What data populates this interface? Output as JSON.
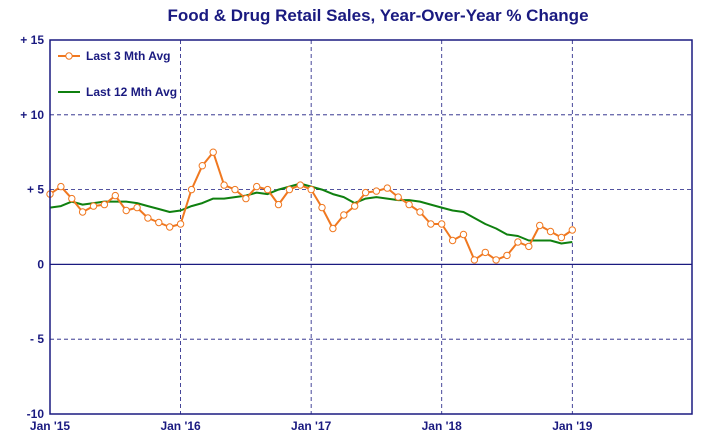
{
  "chart_data": {
    "type": "line",
    "title": "Food & Drug Retail Sales, Year-Over-Year % Change",
    "xlabel": "",
    "ylabel": "",
    "ylim": [
      -10,
      15
    ],
    "y_ticks": [
      15,
      10,
      5,
      0,
      -5,
      -10
    ],
    "y_tick_labels": [
      "+ 15",
      "+ 10",
      "+ 5",
      "0",
      "- 5",
      "-10"
    ],
    "x_tick_labels": [
      "Jan '15",
      "Jan '16",
      "Jan '17",
      "Jan '18",
      "Jan '19"
    ],
    "x_ticks": [
      "2015-01",
      "2016-01",
      "2017-01",
      "2018-01",
      "2019-01"
    ],
    "x_range": [
      "2015-01",
      "2019-12"
    ],
    "grid": true,
    "legend_position": "top-left",
    "x": [
      "2015-01",
      "2015-02",
      "2015-03",
      "2015-04",
      "2015-05",
      "2015-06",
      "2015-07",
      "2015-08",
      "2015-09",
      "2015-10",
      "2015-11",
      "2015-12",
      "2016-01",
      "2016-02",
      "2016-03",
      "2016-04",
      "2016-05",
      "2016-06",
      "2016-07",
      "2016-08",
      "2016-09",
      "2016-10",
      "2016-11",
      "2016-12",
      "2017-01",
      "2017-02",
      "2017-03",
      "2017-04",
      "2017-05",
      "2017-06",
      "2017-07",
      "2017-08",
      "2017-09",
      "2017-10",
      "2017-11",
      "2017-12",
      "2018-01",
      "2018-02",
      "2018-03",
      "2018-04",
      "2018-05",
      "2018-06",
      "2018-07",
      "2018-08",
      "2018-09",
      "2018-10",
      "2018-11",
      "2018-12",
      "2019-01"
    ],
    "series": [
      {
        "name": "Last 3 Mth Avg",
        "color": "#f07820",
        "marker": "circle",
        "values": [
          4.7,
          5.2,
          4.4,
          3.5,
          3.9,
          4.0,
          4.6,
          3.6,
          3.8,
          3.1,
          2.8,
          2.5,
          2.7,
          5.0,
          6.6,
          7.5,
          5.3,
          5.0,
          4.4,
          5.2,
          5.0,
          4.0,
          5.0,
          5.3,
          5.0,
          3.8,
          2.4,
          3.3,
          3.9,
          4.8,
          4.9,
          5.1,
          4.5,
          4.0,
          3.5,
          2.7,
          2.7,
          1.6,
          2.0,
          0.3,
          0.8,
          0.3,
          0.6,
          1.5,
          1.2,
          2.6,
          2.2,
          1.8,
          2.3
        ]
      },
      {
        "name": "Last 12 Mth Avg",
        "color": "#0f800f",
        "marker": "none",
        "values": [
          3.8,
          3.9,
          4.2,
          4.0,
          4.1,
          4.2,
          4.2,
          4.2,
          4.1,
          3.9,
          3.7,
          3.5,
          3.6,
          3.9,
          4.1,
          4.4,
          4.4,
          4.5,
          4.6,
          4.8,
          4.7,
          5.0,
          5.2,
          5.4,
          5.2,
          5.0,
          4.7,
          4.5,
          4.1,
          4.4,
          4.5,
          4.4,
          4.3,
          4.3,
          4.2,
          4.0,
          3.8,
          3.6,
          3.5,
          3.1,
          2.7,
          2.4,
          2.0,
          1.9,
          1.6,
          1.6,
          1.6,
          1.4,
          1.5
        ]
      }
    ]
  },
  "colors": {
    "frame": "#1a1a80",
    "grid": "#1a1a80",
    "text": "#1a1a80",
    "background": "#ffffff"
  }
}
